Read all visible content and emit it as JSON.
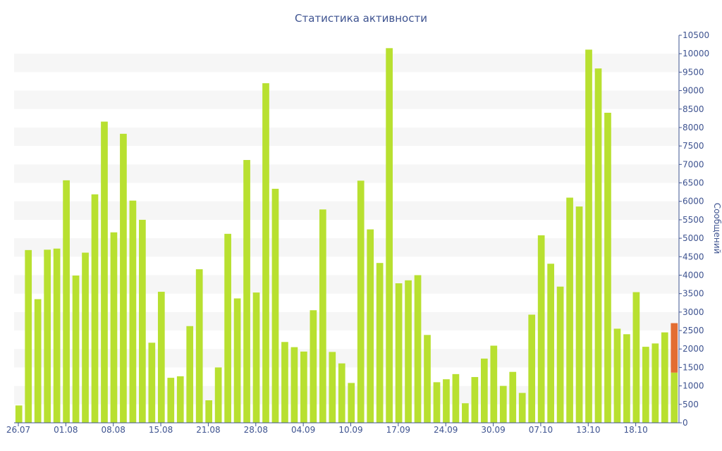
{
  "chart_data": {
    "type": "bar",
    "title": "Статистика активности",
    "ylabel": "Сообщений",
    "xlabel": "",
    "ylim": [
      0,
      10500
    ],
    "ytick_step": 500,
    "grid": "horizontal-bands",
    "x_tick_labels": [
      "26.07",
      "01.08",
      "08.08",
      "15.08",
      "21.08",
      "28.08",
      "04.09",
      "10.09",
      "17.09",
      "24.09",
      "30.09",
      "07.10",
      "13.10",
      "18.10"
    ],
    "x_tick_day_index": [
      0,
      5,
      10,
      15,
      20,
      25,
      30,
      35,
      40,
      45,
      50,
      55,
      60,
      65
    ],
    "values": [
      470,
      4680,
      3350,
      4690,
      4720,
      6570,
      3990,
      4610,
      6190,
      8160,
      5160,
      7830,
      6020,
      5500,
      2170,
      3550,
      1220,
      1260,
      2620,
      4160,
      610,
      1500,
      5120,
      3370,
      7120,
      3530,
      9200,
      6340,
      2190,
      2050,
      1930,
      3050,
      5780,
      1920,
      1610,
      1080,
      6560,
      5240,
      4330,
      10150,
      3780,
      3860,
      4000,
      2380,
      1100,
      1180,
      1320,
      530,
      1240,
      1740,
      2090,
      1000,
      1380,
      810,
      2930,
      5080,
      4310,
      3690,
      6100,
      5860,
      10110,
      9600,
      8400,
      2550,
      2400,
      3540,
      2060,
      2150,
      2450
    ],
    "last_bar": {
      "base": 1360,
      "top": 2700
    },
    "colors": {
      "bar": "#b8e030",
      "highlight": "#e36d32",
      "band": "#f6f6f6",
      "text": "#3e5390",
      "axis": "#3e5390"
    }
  }
}
